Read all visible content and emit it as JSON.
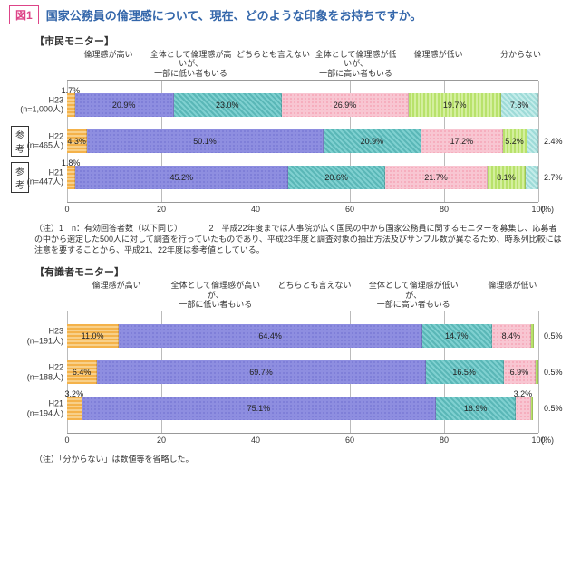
{
  "figure": {
    "label": "図1",
    "title": "国家公務員の倫理感について、現在、どのような印象をお持ちですか。"
  },
  "colors": {
    "orange": "#f4b24a",
    "purple": "#8e8ee0",
    "teal": "#5ab7b7",
    "pink": "#f5a6b8",
    "green": "#b8e26b",
    "lteal": "#9edbd8",
    "grid": "#bbbbbb",
    "axis": "#999999",
    "accent": "#3366aa"
  },
  "axis": {
    "min": 0,
    "max": 100,
    "ticks": [
      0,
      20,
      40,
      60,
      80,
      100
    ],
    "unit": "(%)"
  },
  "panels": [
    {
      "title": "【市民モニター】",
      "legend": [
        "倫理感が高い",
        "全体として倫理感が高いが、\n一部に低い者もいる",
        "どちらとも言えない",
        "全体として倫理感が低いが、\n一部に高い者もいる",
        "倫理感が低い",
        "分からない"
      ],
      "fillClasses": [
        "f0",
        "f1",
        "f2",
        "f3",
        "f4",
        "f5"
      ],
      "rows": [
        {
          "label1": "H23",
          "label2": "(n=1,000人)",
          "ref": false,
          "values": [
            1.7,
            20.9,
            23.0,
            26.9,
            19.7,
            7.8
          ],
          "labels": [
            "1.7%",
            "20.9%",
            "23.0%",
            "26.9%",
            "19.7%",
            "7.8%"
          ]
        },
        {
          "label1": "H22",
          "label2": "(n=465人)",
          "ref": true,
          "values": [
            4.3,
            50.1,
            20.9,
            17.2,
            5.2,
            2.4
          ],
          "labels": [
            "4.3%",
            "50.1%",
            "20.9%",
            "17.2%",
            "5.2%",
            "2.4%"
          ],
          "external": {
            "index": 5,
            "text": "2.4%"
          }
        },
        {
          "label1": "H21",
          "label2": "(n=447人)",
          "ref": true,
          "values": [
            1.8,
            45.2,
            20.6,
            21.7,
            8.1,
            2.7
          ],
          "labels": [
            "1.8%",
            "45.2%",
            "20.6%",
            "21.7%",
            "8.1%",
            "2.7%"
          ],
          "external": {
            "index": 5,
            "text": "2.7%"
          }
        }
      ],
      "notes": "（注）1　n：有効回答者数（以下同じ）\n　　　2　平成22年度までは人事院が広く国民の中から国家公務員に関するモニターを募集し、応募者の中から選定した500人に対して調査を行っていたものであり、平成23年度と調査対象の抽出方法及びサンプル数が異なるため、時系列比較には注意を要することから、平成21、22年度は参考値としている。"
    },
    {
      "title": "【有識者モニター】",
      "legend": [
        "倫理感が高い",
        "全体として倫理感が高いが、\n一部に低い者もいる",
        "どちらとも言えない",
        "全体として倫理感が低いが、\n一部に高い者もいる",
        "倫理感が低い"
      ],
      "fillClasses": [
        "f0",
        "f1",
        "f2",
        "f3",
        "f4"
      ],
      "rows": [
        {
          "label1": "H23",
          "label2": "(n=191人)",
          "ref": false,
          "values": [
            11.0,
            64.4,
            14.7,
            8.4,
            0.5
          ],
          "labels": [
            "11.0%",
            "64.4%",
            "14.7%",
            "8.4%",
            "0.5%"
          ],
          "external": {
            "index": 4,
            "text": "0.5%"
          }
        },
        {
          "label1": "H22",
          "label2": "(n=188人)",
          "ref": false,
          "values": [
            6.4,
            69.7,
            16.5,
            6.9,
            0.5
          ],
          "labels": [
            "6.4%",
            "69.7%",
            "16.5%",
            "6.9%",
            "0.5%"
          ],
          "external": {
            "index": 4,
            "text": "0.5%"
          }
        },
        {
          "label1": "H21",
          "label2": "(n=194人)",
          "ref": false,
          "values": [
            3.2,
            75.1,
            16.9,
            3.2,
            0.5
          ],
          "labels": [
            "3.2%",
            "75.1%",
            "16.9%",
            "3.2%",
            "0.5%"
          ],
          "external": {
            "index": 4,
            "text": "0.5%"
          }
        }
      ],
      "notes": "（注）「分からない」は数値等を省略した。"
    }
  ]
}
